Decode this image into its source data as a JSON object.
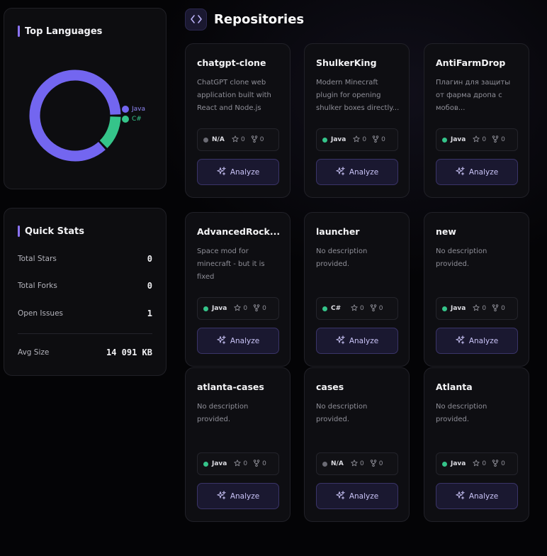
{
  "languages_panel": {
    "title": "Top Languages",
    "chart_data": {
      "type": "pie",
      "categories": [
        "Java",
        "C#"
      ],
      "values": [
        87,
        13
      ],
      "colors": [
        "#7366f0",
        "#35c48a"
      ],
      "legend": "right"
    }
  },
  "stats_panel": {
    "title": "Quick Stats",
    "rows": [
      {
        "label": "Total Stars",
        "value": "0"
      },
      {
        "label": "Total Forks",
        "value": "0"
      },
      {
        "label": "Open Issues",
        "value": "1"
      },
      {
        "label": "Avg Size",
        "value": "14 091 KB"
      }
    ]
  },
  "header": {
    "title": "Repositories",
    "icon": "code-icon"
  },
  "colors": {
    "accent": "#8b73f6",
    "java": "#35c48a",
    "csharp": "#35c48a",
    "none": "#6b6b74"
  },
  "analyze_label": "Analyze",
  "repos": [
    {
      "name": "chatgpt-clone",
      "desc": "ChatGPT clone web application built with React and Node.js",
      "lang": "N/A",
      "stars": "0",
      "forks": "0"
    },
    {
      "name": "ShulkerKing",
      "desc": "Modern Minecraft plugin for opening shulker boxes directly...",
      "lang": "Java",
      "stars": "0",
      "forks": "0"
    },
    {
      "name": "AntiFarmDrop",
      "desc": "Плагин для защиты от фарма дропа с мобов...",
      "lang": "Java",
      "stars": "0",
      "forks": "0"
    },
    {
      "name": "AdvancedRock...",
      "desc": "Space mod for minecraft - but it is fixed",
      "lang": "Java",
      "stars": "0",
      "forks": "0"
    },
    {
      "name": "launcher",
      "desc": "No description provided.",
      "lang": "C#",
      "stars": "0",
      "forks": "0"
    },
    {
      "name": "new",
      "desc": "No description provided.",
      "lang": "Java",
      "stars": "0",
      "forks": "0"
    },
    {
      "name": "atlanta-cases",
      "desc": "No description provided.",
      "lang": "Java",
      "stars": "0",
      "forks": "0"
    },
    {
      "name": "cases",
      "desc": "No description provided.",
      "lang": "N/A",
      "stars": "0",
      "forks": "0"
    },
    {
      "name": "Atlanta",
      "desc": "No description provided.",
      "lang": "Java",
      "stars": "0",
      "forks": "0"
    }
  ]
}
